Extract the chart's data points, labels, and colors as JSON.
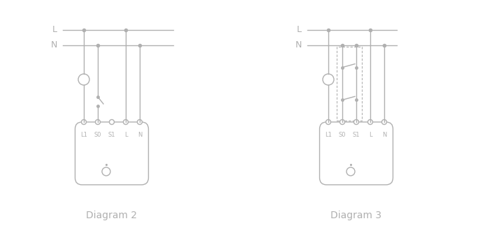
{
  "bg_color": "#ffffff",
  "line_color": "#b0b0b0",
  "text_color": "#b0b0b0",
  "diagram2_label": "Diagram 2",
  "diagram3_label": "Diagram 3",
  "terminal_labels": [
    "L1",
    "S0",
    "S1",
    "L",
    "N"
  ],
  "fig_width": 7.0,
  "fig_height": 3.27,
  "dpi": 100,
  "lw": 1.0
}
